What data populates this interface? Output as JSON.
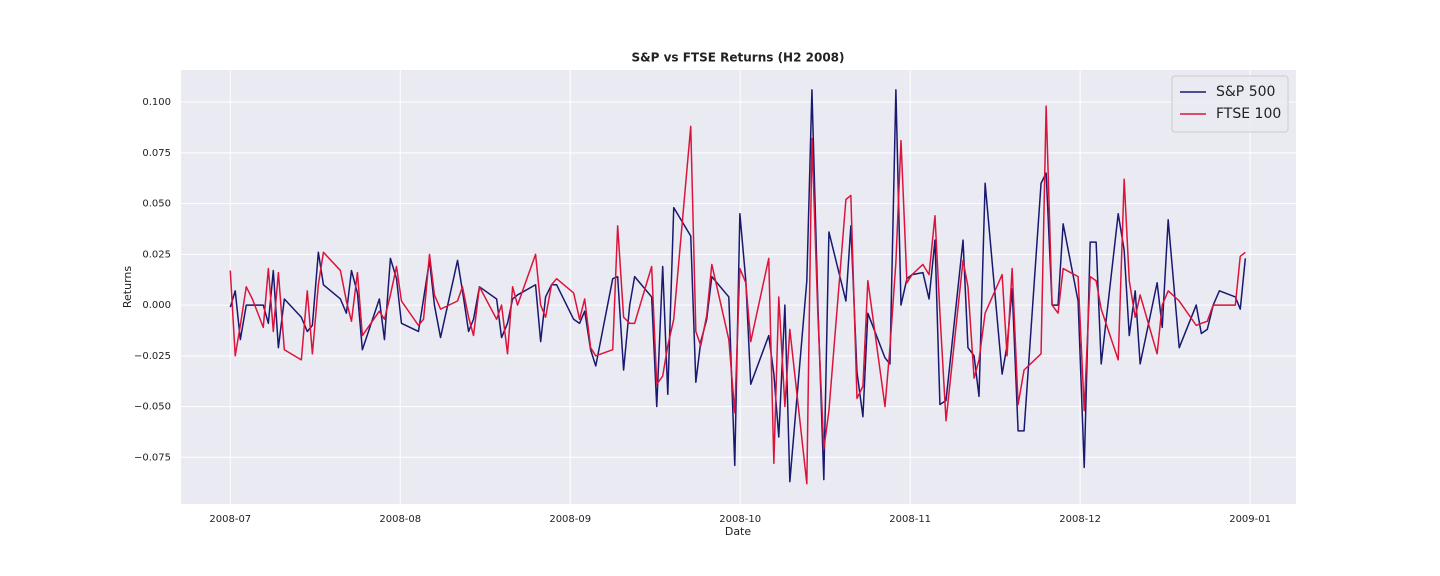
{
  "chart_data": {
    "type": "line",
    "title": "S&P vs FTSE Returns (H2 2008)",
    "x_label": "Date",
    "y_label": "Returns",
    "x": [
      0,
      0.029,
      0.059,
      0.094,
      0.13,
      0.194,
      0.224,
      0.253,
      0.283,
      0.318,
      0.418,
      0.453,
      0.483,
      0.518,
      0.548,
      0.648,
      0.683,
      0.713,
      0.748,
      0.777,
      0.877,
      0.907,
      0.942,
      0.978,
      1.007,
      1.107,
      1.137,
      1.172,
      1.201,
      1.237,
      1.337,
      1.366,
      1.402,
      1.431,
      1.466,
      1.567,
      1.596,
      1.631,
      1.661,
      1.69,
      1.796,
      1.826,
      1.855,
      1.89,
      1.92,
      2.02,
      2.055,
      2.085,
      2.12,
      2.15,
      2.25,
      2.279,
      2.314,
      2.35,
      2.379,
      2.479,
      2.509,
      2.544,
      2.574,
      2.609,
      2.709,
      2.739,
      2.768,
      2.803,
      2.833,
      2.933,
      2.968,
      2.998,
      3.033,
      3.062,
      3.168,
      3.198,
      3.227,
      3.263,
      3.292,
      3.392,
      3.422,
      3.457,
      3.492,
      3.522,
      3.622,
      3.651,
      3.687,
      3.722,
      3.751,
      3.852,
      3.881,
      3.916,
      3.946,
      3.981,
      4.011,
      4.075,
      4.111,
      4.146,
      4.175,
      4.211,
      4.311,
      4.34,
      4.376,
      4.405,
      4.441,
      4.541,
      4.57,
      4.6,
      4.635,
      4.67,
      4.77,
      4.8,
      4.835,
      4.87,
      4.9,
      4.988,
      5.024,
      5.059,
      5.094,
      5.124,
      5.224,
      5.259,
      5.289,
      5.324,
      5.353,
      5.453,
      5.483,
      5.518,
      5.583,
      5.683,
      5.713,
      5.748,
      5.783,
      5.819,
      5.913,
      5.942,
      5.972
    ],
    "series": [
      {
        "name": "S&P 500",
        "color": "#191970",
        "values": [
          -0.001,
          0.007,
          -0.017,
          0,
          0,
          0,
          -0.009,
          0.017,
          -0.021,
          0.003,
          -0.006,
          -0.013,
          -0.01,
          0.026,
          0.01,
          0.003,
          -0.004,
          0.017,
          0.006,
          -0.022,
          0.003,
          -0.017,
          0.023,
          0.013,
          -0.009,
          -0.013,
          0.003,
          0.022,
          0,
          -0.016,
          0.022,
          0.007,
          -0.013,
          -0.007,
          0.009,
          0.003,
          -0.016,
          -0.009,
          0.003,
          0.005,
          0.01,
          -0.018,
          0.004,
          0.01,
          0.01,
          -0.007,
          -0.009,
          -0.003,
          -0.022,
          -0.03,
          0.013,
          0.014,
          -0.032,
          0,
          0.014,
          0.004,
          -0.05,
          0.019,
          -0.044,
          0.048,
          0.034,
          -0.038,
          -0.018,
          -0.007,
          0.014,
          0.004,
          -0.079,
          0.045,
          0.012,
          -0.039,
          -0.015,
          -0.034,
          -0.065,
          0,
          -0.087,
          0.012,
          0.106,
          0,
          -0.086,
          0.036,
          0.002,
          0.039,
          -0.033,
          -0.055,
          -0.004,
          -0.026,
          -0.029,
          0.106,
          0,
          0.013,
          0.015,
          0.016,
          0.003,
          0.032,
          -0.049,
          -0.047,
          0.032,
          -0.021,
          -0.025,
          -0.045,
          0.06,
          -0.034,
          -0.02,
          0.008,
          -0.062,
          -0.062,
          0.06,
          0.065,
          0,
          0,
          0.04,
          0.002,
          -0.08,
          0.031,
          0.031,
          -0.029,
          0.045,
          0.027,
          -0.015,
          0.007,
          -0.029,
          0.011,
          -0.011,
          0.042,
          -0.021,
          0,
          -0.014,
          -0.012,
          0,
          0.007,
          0.004,
          -0.002,
          0.023
        ]
      },
      {
        "name": "FTSE 100",
        "color": "#dc143c",
        "values": [
          0.017,
          -0.025,
          -0.01,
          0.009,
          0.003,
          -0.011,
          0.018,
          -0.013,
          0.016,
          -0.022,
          -0.027,
          0.007,
          -0.024,
          0.01,
          0.026,
          0.017,
          0.002,
          -0.008,
          0.016,
          -0.015,
          -0.003,
          -0.007,
          0.005,
          0.019,
          0.002,
          -0.01,
          -0.007,
          0.025,
          0.005,
          -0.002,
          0.002,
          0.009,
          -0.006,
          -0.015,
          0.009,
          -0.007,
          0,
          -0.024,
          0.009,
          0,
          0.025,
          0,
          -0.006,
          0.01,
          0.013,
          0.006,
          -0.007,
          0.003,
          -0.021,
          -0.025,
          -0.022,
          0.039,
          -0.006,
          -0.009,
          -0.009,
          0.019,
          -0.039,
          -0.035,
          -0.02,
          -0.007,
          0.088,
          -0.013,
          -0.02,
          -0.005,
          0.02,
          -0.017,
          -0.053,
          0.018,
          0.011,
          -0.018,
          0.023,
          -0.078,
          0.004,
          -0.05,
          -0.012,
          -0.088,
          0.082,
          -0.005,
          -0.071,
          -0.052,
          0.052,
          0.054,
          -0.046,
          -0.04,
          0.012,
          -0.05,
          -0.021,
          0.021,
          0.081,
          0.011,
          0.015,
          0.02,
          0.015,
          0.044,
          -0.004,
          -0.057,
          0.022,
          0.009,
          -0.036,
          -0.027,
          -0.004,
          0.015,
          -0.025,
          0.018,
          -0.049,
          -0.032,
          -0.024,
          0.098,
          0,
          -0.004,
          0.018,
          0.014,
          -0.052,
          0.014,
          0.012,
          -0.002,
          -0.027,
          0.062,
          0.012,
          -0.006,
          0.005,
          -0.024,
          0,
          0.007,
          0.002,
          -0.01,
          -0.009,
          -0.008,
          0,
          0,
          0,
          0.024,
          0.026
        ]
      }
    ],
    "xlim": [
      -0.29,
      6.27
    ],
    "xticks": [
      {
        "value": 0,
        "label": "2008-07"
      },
      {
        "value": 1,
        "label": "2008-08"
      },
      {
        "value": 2,
        "label": "2008-09"
      },
      {
        "value": 3,
        "label": "2008-10"
      },
      {
        "value": 4,
        "label": "2008-11"
      },
      {
        "value": 5,
        "label": "2008-12"
      },
      {
        "value": 6,
        "label": "2009-01"
      }
    ],
    "ylim": [
      -0.098,
      0.1158
    ],
    "yticks": [
      {
        "value": -0.075,
        "label": "−0.075"
      },
      {
        "value": -0.05,
        "label": "−0.050"
      },
      {
        "value": -0.025,
        "label": "−0.025"
      },
      {
        "value": 0,
        "label": "0.000"
      },
      {
        "value": 0.025,
        "label": "0.025"
      },
      {
        "value": 0.05,
        "label": "0.050"
      },
      {
        "value": 0.075,
        "label": "0.075"
      },
      {
        "value": 0.1,
        "label": "0.100"
      }
    ],
    "grid": true,
    "legend": "upper right"
  }
}
